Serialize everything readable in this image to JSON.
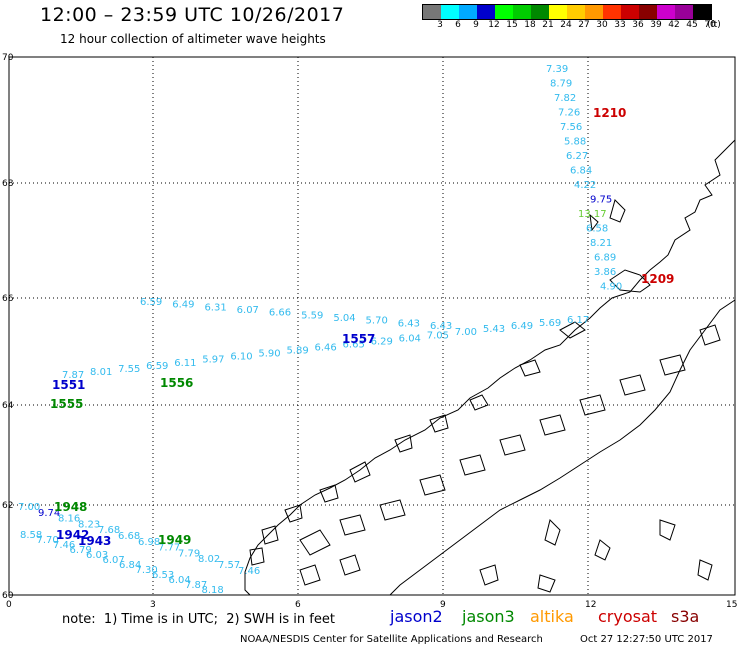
{
  "title": "12:00 – 23:59 UTC 10/26/2017",
  "subtitle": "12 hour collection of altimeter wave heights",
  "scale": {
    "colors": [
      "#777777",
      "#00ffff",
      "#00aaff",
      "#0000cc",
      "#00ff00",
      "#00cc00",
      "#008800",
      "#ffff00",
      "#ffcc00",
      "#ff9900",
      "#ff3300",
      "#cc0000",
      "#880000",
      "#cc00cc",
      "#990099",
      "#000000"
    ],
    "labels": [
      "3",
      "6",
      "9",
      "12",
      "15",
      "18",
      "21",
      "24",
      "27",
      "30",
      "33",
      "36",
      "39",
      "42",
      "45",
      "70",
      "(ft)"
    ]
  },
  "axes": {
    "x_ticks": [
      "0",
      "3",
      "6",
      "9",
      "12",
      "15"
    ],
    "y_ticks": [
      "70",
      "68",
      "66",
      "64",
      "62",
      "60"
    ]
  },
  "note": "note:  1) Time is in UTC;  2) SWH is in feet",
  "legend": [
    {
      "label": "jason2",
      "color": "#0000cc"
    },
    {
      "label": "jason3",
      "color": "#008800"
    },
    {
      "label": "altika",
      "color": "#ff9900"
    },
    {
      "label": "cryosat",
      "color": "#cc0000"
    },
    {
      "label": "s3a",
      "color": "#880000"
    }
  ],
  "footer_left": "NOAA/NESDIS Center for Satellite Applications and Research",
  "footer_right": "Oct 27 12:27:50 UTC 2017",
  "pass_labels": [
    {
      "text": "1210",
      "color": "#cc0000"
    },
    {
      "text": "1209",
      "color": "#cc0000"
    },
    {
      "text": "1557",
      "color": "#0000cc"
    },
    {
      "text": "1551",
      "color": "#0000cc"
    },
    {
      "text": "1948",
      "color": "#008800"
    },
    {
      "text": "1942",
      "color": "#0000cc"
    },
    {
      "text": "1943",
      "color": "#0000cc"
    },
    {
      "text": "1949",
      "color": "#008800"
    },
    {
      "text": "1556",
      "color": "#008800"
    },
    {
      "text": "1555",
      "color": "#008800"
    }
  ],
  "north_track": [
    "7.39",
    "8.79",
    "7.82",
    "7.26",
    "7.56",
    "5.88",
    "6.27",
    "6.84",
    "4.22",
    "9.75",
    "13.17",
    "6.58",
    "8.21",
    "6.89",
    "3.86",
    "4.90"
  ],
  "north_track_colors": [
    "#33bbee",
    "#33bbee",
    "#33bbee",
    "#33bbee",
    "#33bbee",
    "#33bbee",
    "#33bbee",
    "#33bbee",
    "#33bbee",
    "#0000cc",
    "#66cc33",
    "#33bbee",
    "#33bbee",
    "#33bbee",
    "#33bbee",
    "#33bbee"
  ],
  "mid_track_values": [
    "7.87",
    "8.01",
    "7.55",
    "6.59",
    "6.11",
    "5.97",
    "6.10",
    "5.90",
    "5.89",
    "6.46",
    "6.65",
    "6.29",
    "6.04",
    "7.05",
    "7.00",
    "5.43",
    "6.49",
    "5.69",
    "6.17"
  ],
  "upper_track_values": [
    "6.59",
    "6.49",
    "6.31",
    "6.07",
    "6.66",
    "5.59",
    "5.04",
    "5.70",
    "6.43",
    "6.43"
  ],
  "south_track_a": [
    "7.00",
    "9.74",
    "8.16",
    "8.23",
    "7.68",
    "6.68",
    "6.98",
    "7.77",
    "7.79",
    "8.02",
    "7.57",
    "7.46"
  ],
  "south_track_b": [
    "8.58",
    "7.70",
    "7.46",
    "6.79",
    "6.03",
    "6.07",
    "6.84",
    "7.30",
    "6.53",
    "6.04",
    "7.87",
    "8.18"
  ]
}
